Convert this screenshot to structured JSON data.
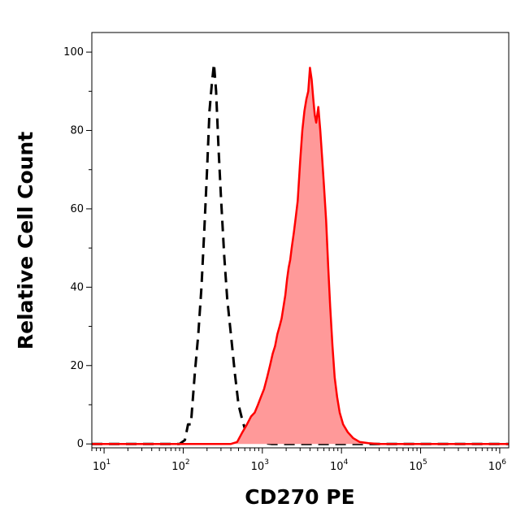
{
  "chart_data": {
    "type": "area",
    "title": "",
    "xlabel": "CD270 PE",
    "ylabel": "Relative Cell Count",
    "xscale": "log",
    "xlim": [
      7,
      1300000
    ],
    "ylim": [
      -1,
      105
    ],
    "x_ticks": [
      {
        "value": 10,
        "base": "10",
        "exp": "1"
      },
      {
        "value": 100,
        "base": "10",
        "exp": "2"
      },
      {
        "value": 1000,
        "base": "10",
        "exp": "3"
      },
      {
        "value": 10000,
        "base": "10",
        "exp": "4"
      },
      {
        "value": 100000,
        "base": "10",
        "exp": "5"
      },
      {
        "value": 1000000,
        "base": "10",
        "exp": "6"
      }
    ],
    "y_ticks": [
      "0",
      "20",
      "40",
      "60",
      "80",
      "100"
    ],
    "grid": false,
    "series": [
      {
        "style": "dashed",
        "color": "#000000",
        "x": [
          7,
          90,
          105,
          115,
          125,
          140,
          155,
          170,
          185,
          200,
          215,
          230,
          245,
          260,
          280,
          300,
          330,
          360,
          400,
          450,
          500,
          560,
          620,
          700,
          800,
          1000,
          1300,
          2000,
          5000,
          20000,
          1300000
        ],
        "y": [
          0,
          0,
          1,
          5,
          5,
          18,
          28,
          40,
          55,
          70,
          85,
          92,
          97,
          90,
          75,
          63,
          48,
          37,
          28,
          18,
          10,
          6,
          3,
          1.5,
          0.5,
          0.3,
          0,
          0,
          0,
          0,
          0
        ]
      },
      {
        "style": "filled",
        "color": "#ff0000",
        "fill": "#ff9999",
        "x": [
          7,
          400,
          480,
          560,
          640,
          720,
          800,
          880,
          960,
          1050,
          1150,
          1250,
          1350,
          1450,
          1550,
          1650,
          1750,
          1850,
          1950,
          2050,
          2150,
          2250,
          2350,
          2500,
          2650,
          2800,
          3000,
          3200,
          3400,
          3600,
          3800,
          4000,
          4200,
          4400,
          4600,
          4800,
          5100,
          5400,
          5700,
          6000,
          6400,
          6800,
          7200,
          7700,
          8200,
          8800,
          9500,
          10500,
          12000,
          14000,
          17000,
          22000,
          30000,
          100000,
          1300000
        ],
        "y": [
          0,
          0,
          0.5,
          3,
          5,
          7,
          8,
          10,
          12,
          14,
          17,
          20,
          23,
          25,
          28,
          30,
          32,
          35,
          38,
          42,
          45,
          47,
          50,
          54,
          58,
          62,
          72,
          80,
          85,
          88,
          90,
          96,
          93,
          88,
          84,
          82,
          86,
          80,
          73,
          66,
          57,
          45,
          35,
          25,
          17,
          12,
          8,
          5,
          3,
          1.5,
          0.5,
          0.2,
          0,
          0,
          0
        ]
      }
    ]
  }
}
